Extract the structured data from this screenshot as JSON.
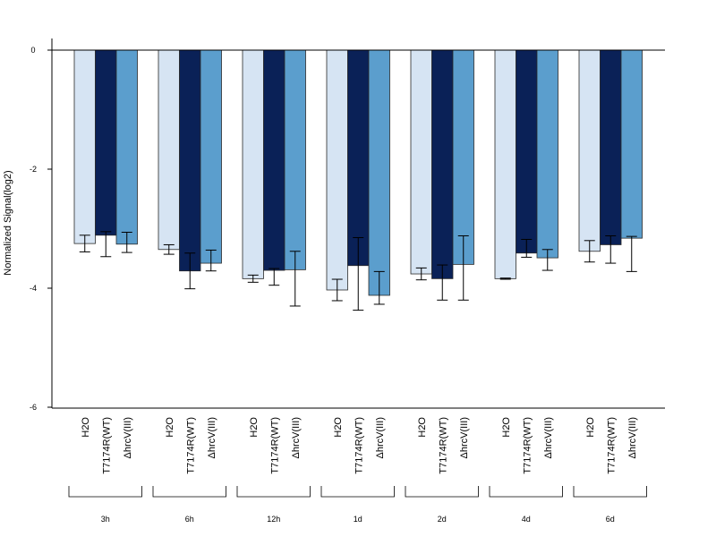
{
  "chart_data": {
    "type": "bar",
    "ylabel": "Normalized Signal(log2)",
    "ylim": [
      -6,
      0.2
    ],
    "yticks": [
      0,
      -2,
      -4,
      -6
    ],
    "ytick_labels": [
      "0",
      "-2",
      "-4",
      "-6"
    ],
    "categories": [
      "3h",
      "6h",
      "12h",
      "1d",
      "2d",
      "4d",
      "6d"
    ],
    "series": [
      {
        "name": "H2O",
        "color": "#d6e4f3",
        "values": [
          -3.25,
          -3.35,
          -3.84,
          -4.03,
          -3.76,
          -3.84,
          -3.38
        ],
        "err_low": [
          -3.39,
          -3.43,
          -3.9,
          -4.21,
          -3.86,
          -3.85,
          -3.56
        ],
        "err_high": [
          -3.11,
          -3.27,
          -3.78,
          -3.85,
          -3.66,
          -3.83,
          -3.2
        ]
      },
      {
        "name": "T7174R(WT)",
        "color": "#0a2157",
        "values": [
          -3.11,
          -3.71,
          -3.7,
          -3.62,
          -3.84,
          -3.41,
          -3.27
        ],
        "err_low": [
          -3.47,
          -4.01,
          -3.95,
          -4.37,
          -4.2,
          -3.48,
          -3.58
        ],
        "err_high": [
          -3.05,
          -3.41,
          -3.67,
          -3.15,
          -3.61,
          -3.18,
          -3.12
        ]
      },
      {
        "name": "ΔhrcV(III)",
        "color": "#5b9ecd",
        "values": [
          -3.26,
          -3.58,
          -3.69,
          -4.12,
          -3.6,
          -3.49,
          -3.16
        ],
        "err_low": [
          -3.4,
          -3.71,
          -4.3,
          -4.27,
          -4.2,
          -3.7,
          -3.72
        ],
        "err_high": [
          -3.06,
          -3.36,
          -3.38,
          -3.72,
          -3.12,
          -3.35,
          -3.13
        ]
      }
    ],
    "grid": false,
    "legend": "none"
  }
}
